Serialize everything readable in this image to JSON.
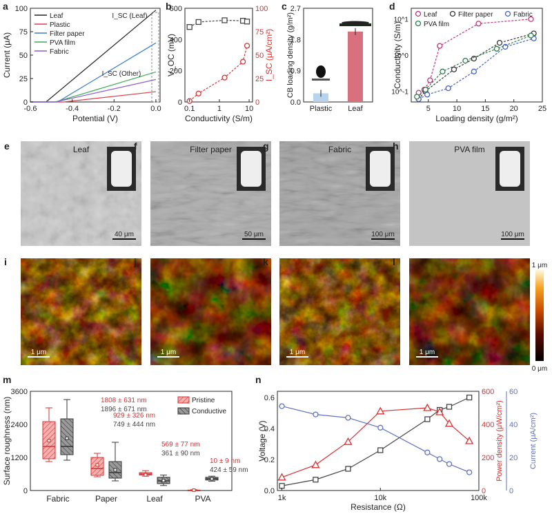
{
  "panel_letters": [
    "a",
    "b",
    "c",
    "d",
    "e",
    "f",
    "g",
    "h",
    "i",
    "j",
    "k",
    "l",
    "m",
    "n"
  ],
  "colors": {
    "leaf": "#222222",
    "plastic": "#e03a4a",
    "filter": "#3a7ad0",
    "pva": "#3caa55",
    "fabric": "#8a5ad0",
    "red": "#d93030",
    "blue": "#6070c0",
    "gray": "#444444",
    "d_leaf": "#c0307a",
    "d_filter": "#333333",
    "d_fabric": "#4060c0",
    "d_pva": "#2a7a4a"
  },
  "chart_data": [
    {
      "id": "a",
      "type": "line",
      "xlabel": "Potential (V)",
      "ylabel": "Current (μA)",
      "xlim": [
        -0.6,
        0.02
      ],
      "ylim": [
        0,
        100
      ],
      "xticks": [
        "-0.6",
        "-0.4",
        "-0.2",
        "0.0"
      ],
      "yticks": [
        "0",
        "25",
        "50",
        "75",
        "100"
      ],
      "legend": [
        "Leaf",
        "Plastic",
        "Filter paper",
        "PVA film",
        "Fabric"
      ],
      "annotations": [
        "I_SC (Leaf)",
        "I_SC (Other)"
      ],
      "series": [
        {
          "name": "Leaf",
          "x": [
            -0.6,
            -0.525,
            0.0
          ],
          "y": [
            0,
            0,
            98
          ]
        },
        {
          "name": "Plastic",
          "x": [
            -0.6,
            -0.44,
            0.0
          ],
          "y": [
            0,
            0,
            11
          ]
        },
        {
          "name": "Filter paper",
          "x": [
            -0.6,
            -0.47,
            0.0
          ],
          "y": [
            0,
            0,
            63
          ]
        },
        {
          "name": "PVA film",
          "x": [
            -0.6,
            -0.48,
            0.0
          ],
          "y": [
            0,
            0,
            32
          ]
        },
        {
          "name": "Fabric",
          "x": [
            -0.6,
            -0.48,
            0.0
          ],
          "y": [
            0,
            0,
            24
          ]
        }
      ]
    },
    {
      "id": "b",
      "type": "scatter",
      "xlabel": "Conductivity (S/m)",
      "ylabel_left": "V_OC (mV)",
      "ylabel_right": "I_SC (μA/cm²)",
      "xscale": "log",
      "xlim": [
        0.07,
        13
      ],
      "ylim_left": [
        0,
        600
      ],
      "ylim_right": [
        0,
        100
      ],
      "xticks": [
        "0.1",
        "1",
        "10"
      ],
      "yticks_left": [
        "0",
        "200",
        "400",
        "600"
      ],
      "yticks_right": [
        "0",
        "25",
        "50",
        "75",
        "100"
      ],
      "x": [
        0.1,
        0.2,
        1.5,
        6.2,
        8.5
      ],
      "voc": [
        480,
        512,
        523,
        520,
        515
      ],
      "isc": [
        1,
        9,
        26,
        43,
        60
      ]
    },
    {
      "id": "c",
      "type": "bar",
      "ylabel": "CB loading density (g/m²)",
      "categories": [
        "Plastic",
        "Leaf"
      ],
      "values": [
        0.25,
        2.03
      ],
      "ylim": [
        0,
        2.7
      ],
      "yticks": [
        "0.0",
        "0.9",
        "1.8",
        "2.7"
      ]
    },
    {
      "id": "d",
      "type": "line",
      "xlabel": "Loading density (g/m²)",
      "ylabel": "Conductivity (S/m)",
      "yscale": "log",
      "xlim": [
        2,
        25
      ],
      "ylim": [
        0.05,
        20
      ],
      "xticks": [
        "5",
        "10",
        "15",
        "20",
        "25"
      ],
      "yticks": [
        "10^-1",
        "10^0",
        "10^1"
      ],
      "legend": [
        "Leaf",
        "Filter paper",
        "Fabric",
        "PVA film"
      ],
      "series": [
        {
          "name": "Leaf",
          "x": [
            3.3,
            4.3,
            5.3,
            7.0,
            13.8,
            23.0
          ],
          "y": [
            0.09,
            0.11,
            0.2,
            1.8,
            7.5,
            10
          ]
        },
        {
          "name": "Filter paper",
          "x": [
            3.3,
            4.5,
            9.5,
            13.0,
            17.5,
            23.5
          ],
          "y": [
            0.06,
            0.1,
            0.4,
            0.8,
            2.2,
            4.0
          ]
        },
        {
          "name": "Fabric",
          "x": [
            3.3,
            4.8,
            8.5,
            13.0,
            18.5,
            23.5
          ],
          "y": [
            0.06,
            0.08,
            0.12,
            0.35,
            1.7,
            2.9
          ]
        },
        {
          "name": "PVA film",
          "x": [
            3.0,
            4.5,
            7.5,
            11.5,
            17.0,
            23.0
          ],
          "y": [
            0.07,
            0.11,
            0.35,
            0.7,
            1.5,
            3.5
          ]
        }
      ]
    },
    {
      "id": "m",
      "type": "box",
      "ylabel": "Surface roughness (nm)",
      "categories": [
        "Fabric",
        "Paper",
        "Leaf",
        "PVA"
      ],
      "legend": [
        "Pristine",
        "Conductive"
      ],
      "ylim": [
        0,
        3600
      ],
      "yticks": [
        "0",
        "1200",
        "2400",
        "3600"
      ],
      "pristine": [
        {
          "q1": 1150,
          "med": 1600,
          "q3": 2500,
          "lo": 1050,
          "hi": 3000,
          "mean": 1808
        },
        {
          "q1": 550,
          "med": 800,
          "q3": 1200,
          "lo": 500,
          "hi": 1350,
          "mean": 929
        },
        {
          "q1": 560,
          "med": 600,
          "q3": 650,
          "lo": 520,
          "hi": 720,
          "mean": 569
        },
        {
          "q1": 5,
          "med": 10,
          "q3": 15,
          "lo": 0,
          "hi": 30,
          "mean": 10
        }
      ],
      "conductive": [
        {
          "q1": 1300,
          "med": 1600,
          "q3": 2600,
          "lo": 1100,
          "hi": 3300,
          "mean": 1896
        },
        {
          "q1": 450,
          "med": 650,
          "q3": 1050,
          "lo": 350,
          "hi": 1750,
          "mean": 749
        },
        {
          "q1": 250,
          "med": 350,
          "q3": 480,
          "lo": 180,
          "hi": 560,
          "mean": 361
        },
        {
          "q1": 380,
          "med": 430,
          "q3": 480,
          "lo": 340,
          "hi": 520,
          "mean": 424
        }
      ],
      "annotations": [
        {
          "red": "1808 ± 631 nm",
          "gray": "1896 ± 671 nm"
        },
        {
          "red": "929 ± 326 nm",
          "gray": "749 ± 444 nm"
        },
        {
          "red": "569 ± 77 nm",
          "gray": "361 ± 90 nm"
        },
        {
          "red": "10 ± 9 nm",
          "gray": "424 ± 59 nm"
        }
      ]
    },
    {
      "id": "n",
      "type": "line",
      "xlabel": "Resistance (Ω)",
      "xscale": "log",
      "xlim": [
        900,
        100000
      ],
      "xticks": [
        "1k",
        "10k",
        "100k"
      ],
      "ylabel_1": "Voltage (V)",
      "ylim_1": [
        0,
        0.64
      ],
      "yticks_1": [
        "0.0",
        "0.2",
        "0.4",
        "0.6"
      ],
      "ylabel_2": "Power density (μW/cm²)",
      "ylim_2": [
        0,
        600
      ],
      "yticks_2": [
        "0",
        "200",
        "400",
        "600"
      ],
      "ylabel_3": "Current (μA/cm²)",
      "ylim_3": [
        0,
        60
      ],
      "yticks_3": [
        "0",
        "20",
        "40",
        "60"
      ],
      "x": [
        1000,
        2200,
        4700,
        10000,
        30000,
        40000,
        50000,
        80000
      ],
      "voltage": [
        0.03,
        0.07,
        0.14,
        0.26,
        0.46,
        0.52,
        0.54,
        0.6
      ],
      "power": [
        80,
        155,
        295,
        480,
        500,
        475,
        405,
        300
      ],
      "current": [
        51,
        46,
        44,
        38,
        23,
        19,
        16,
        11
      ]
    }
  ],
  "sem": [
    {
      "label": "Leaf",
      "scale": "40 μm"
    },
    {
      "label": "Filter paper",
      "scale": "50 μm"
    },
    {
      "label": "Fabric",
      "scale": "100 μm"
    },
    {
      "label": "PVA film",
      "scale": "100 μm"
    }
  ],
  "afm": {
    "scale": "1 μm",
    "colorbar_top": "1 μm",
    "colorbar_bottom": "0 μm"
  }
}
